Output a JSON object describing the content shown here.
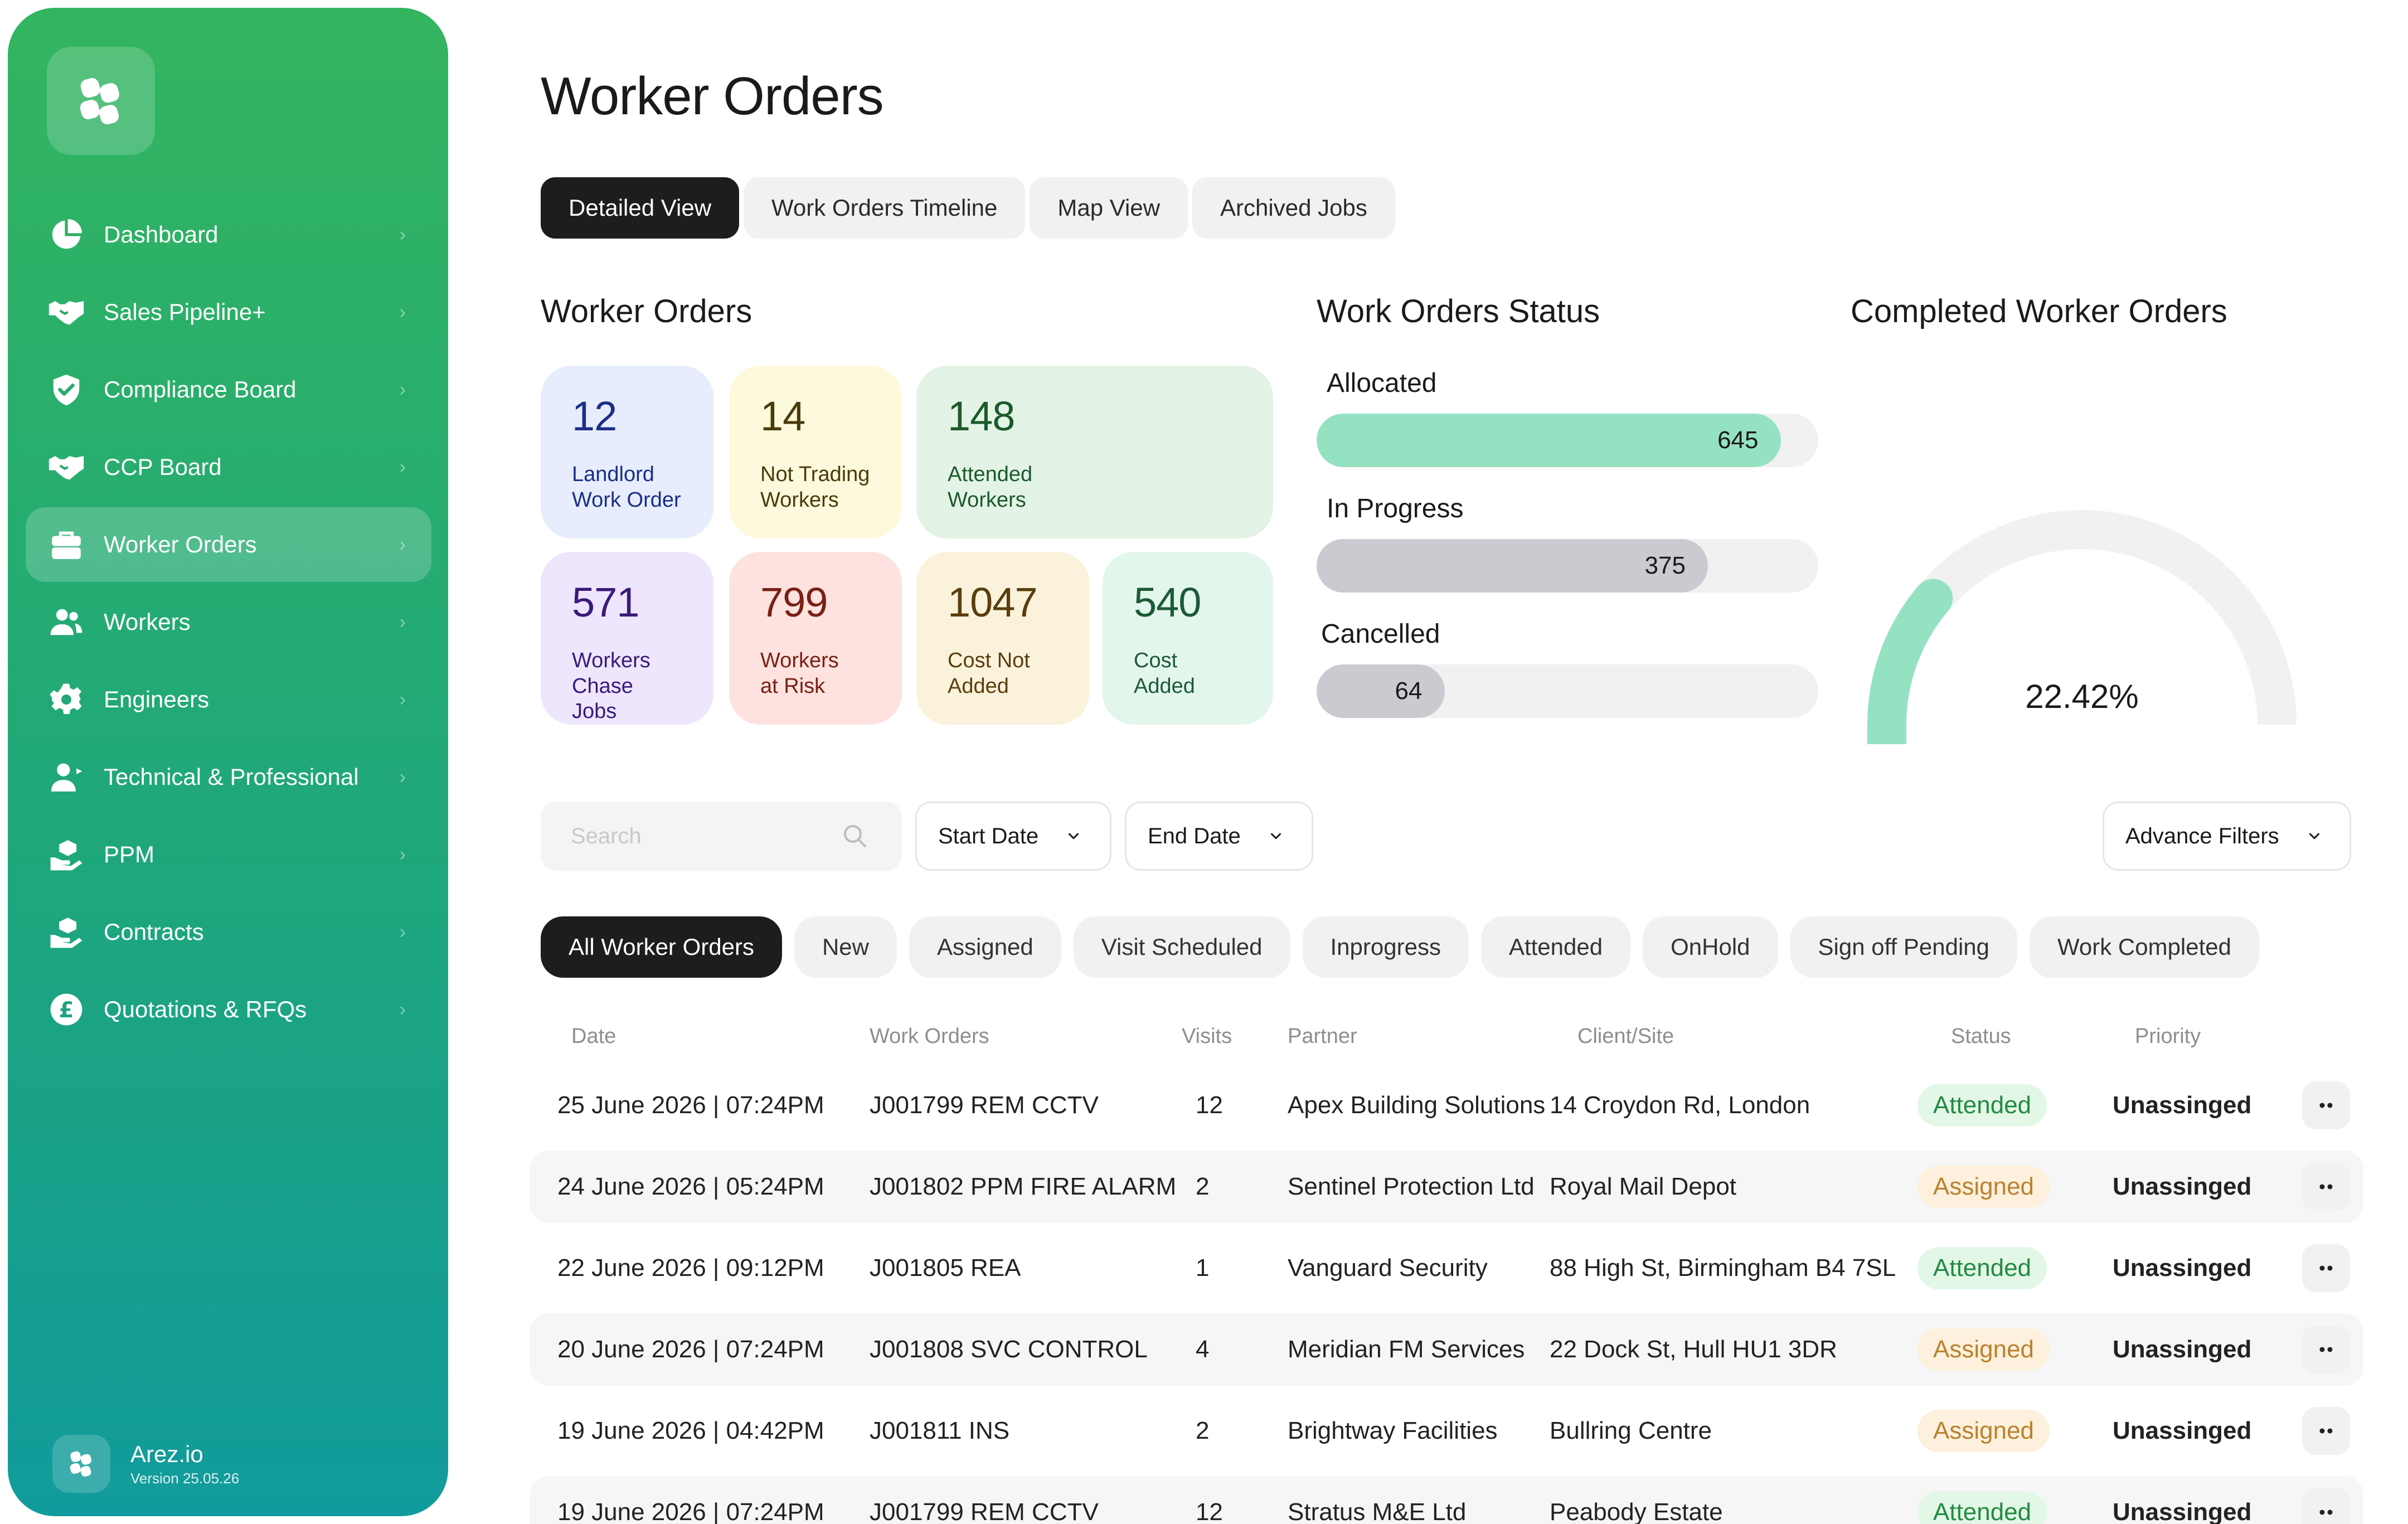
{
  "app": {
    "name": "Arez.io",
    "version": "Version 25.05.26"
  },
  "sidebar": {
    "items": [
      {
        "label": "Dashboard",
        "icon": "pie-chart-icon"
      },
      {
        "label": "Sales Pipeline+",
        "icon": "handshake-icon"
      },
      {
        "label": "Compliance Board",
        "icon": "shield-check-icon"
      },
      {
        "label": "CCP Board",
        "icon": "handshake-icon"
      },
      {
        "label": "Worker Orders",
        "icon": "toolbox-icon",
        "active": true
      },
      {
        "label": "Workers",
        "icon": "users-icon"
      },
      {
        "label": "Engineers",
        "icon": "gear-icon"
      },
      {
        "label": "Technical & Professional",
        "icon": "user-tie-icon"
      },
      {
        "label": "PPM",
        "icon": "hand-holding-icon"
      },
      {
        "label": "Contracts",
        "icon": "hand-holding-icon"
      },
      {
        "label": "Quotations & RFQs",
        "icon": "pound-icon"
      }
    ]
  },
  "page": {
    "title": "Worker Orders"
  },
  "view_tabs": [
    "Detailed View",
    "Work Orders Timeline",
    "Map View",
    "Archived Jobs"
  ],
  "stats": {
    "title": "Worker Orders",
    "cards": [
      {
        "value": "12",
        "label": "Landlord\nWork Order",
        "bg": "#e8edfd",
        "color": "#1b2f88"
      },
      {
        "value": "14",
        "label": "Not Trading\nWorkers",
        "bg": "#fdf9dc",
        "color": "#4a3b0a"
      },
      {
        "value": "148",
        "label": "Attended\nWorkers",
        "bg": "#e3f3e6",
        "color": "#1c5a2a"
      },
      {
        "value": "571",
        "label": "Workers\nChase Jobs",
        "bg": "#ede6fd",
        "color": "#3a1a7a"
      },
      {
        "value": "799",
        "label": "Workers\nat Risk",
        "bg": "#fde2df",
        "color": "#7a1f14"
      },
      {
        "value": "1047",
        "label": "Cost Not\nAdded",
        "bg": "#fbf2dc",
        "color": "#5a3e0c"
      },
      {
        "value": "540",
        "label": "Cost\nAdded",
        "bg": "#e3f6ec",
        "color": "#1c5a38"
      }
    ]
  },
  "status": {
    "title": "Work Orders Status",
    "bars": [
      {
        "label": "Allocated",
        "value": "645",
        "fraction": 0.925,
        "color": "#95e2c3"
      },
      {
        "label": "In Progress",
        "value": "375",
        "fraction": 0.78,
        "color": "#c9cbd0"
      },
      {
        "label": "Cancelled",
        "value": "64",
        "fraction": 0.255,
        "color": "#c9cbd0"
      }
    ]
  },
  "completed": {
    "title": "Completed Worker Orders",
    "value": "22.42%",
    "fraction": 0.2242,
    "color": "#95e2c3"
  },
  "filters": {
    "search_placeholder": "Search",
    "start_date": "Start Date",
    "end_date": "End Date",
    "advance": "Advance Filters"
  },
  "status_tabs": [
    "All Worker Orders",
    "New",
    "Assigned",
    "Visit Scheduled",
    "Inprogress",
    "Attended",
    "OnHold",
    "Sign off Pending",
    "Work Completed"
  ],
  "table": {
    "headers": [
      "Date",
      "Work Orders",
      "Visits",
      "Partner",
      "Client/Site",
      "Status",
      "Priority"
    ],
    "rows": [
      {
        "date": "25 June 2026 | 07:24PM",
        "order": "J001799 REM CCTV",
        "visits": "12",
        "partner": "Apex Building Solutions",
        "site": "14 Croydon Rd, London",
        "status": "Attended",
        "priority": "Unassinged"
      },
      {
        "date": "24 June 2026 | 05:24PM",
        "order": "J001802 PPM FIRE ALARM",
        "visits": "2",
        "partner": "Sentinel Protection Ltd",
        "site": "Royal Mail Depot",
        "status": "Assigned",
        "priority": "Unassinged"
      },
      {
        "date": "22 June 2026 | 09:12PM",
        "order": "J001805 REA",
        "visits": "1",
        "partner": "Vanguard Security",
        "site": "88 High St, Birmingham B4 7SL",
        "status": "Attended",
        "priority": "Unassinged"
      },
      {
        "date": "20 June 2026 | 07:24PM",
        "order": "J001808 SVC  CONTROL",
        "visits": "4",
        "partner": "Meridian FM Services",
        "site": "22 Dock St, Hull HU1 3DR",
        "status": "Assigned",
        "priority": "Unassinged"
      },
      {
        "date": "19 June 2026 | 04:42PM",
        "order": "J001811 INS",
        "visits": "2",
        "partner": "Brightway Facilities",
        "site": "Bullring Centre",
        "status": "Assigned",
        "priority": "Unassinged"
      },
      {
        "date": "19 June 2026 | 07:24PM",
        "order": "J001799 REM CCTV",
        "visits": "12",
        "partner": "Stratus M&E Ltd",
        "site": "Peabody Estate",
        "status": "Attended",
        "priority": "Unassinged"
      }
    ]
  }
}
